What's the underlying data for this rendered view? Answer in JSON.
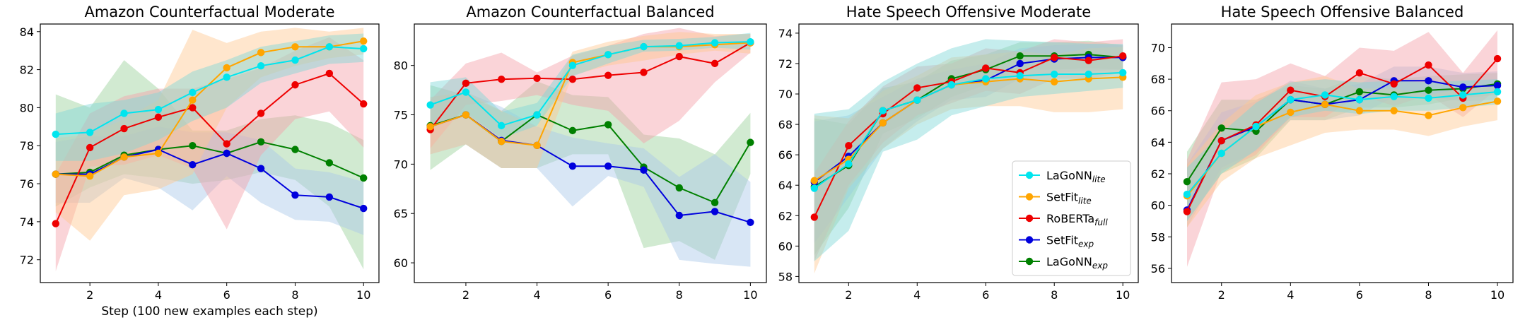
{
  "colors": {
    "LaGoNN_lite": "#00e5ee",
    "SetFit_lite": "#ffa500",
    "RoBERTa_full": "#ee0000",
    "SetFit_exp": "#0000dd",
    "LaGoNN_exp": "#008000",
    "band_LaGoNN_lite": "#7fd8d8",
    "band_SetFit_lite": "#ffc890",
    "band_RoBERTa_full": "#f4a0a8",
    "band_SetFit_exp": "#a8c8e8",
    "band_LaGoNN_exp": "#2ca02c"
  },
  "legend": {
    "entries": [
      {
        "key": "LaGoNN_lite",
        "base": "LaGoNN",
        "sub": "lite"
      },
      {
        "key": "SetFit_lite",
        "base": "SetFit",
        "sub": "lite"
      },
      {
        "key": "RoBERTa_full",
        "base": "RoBERTa",
        "sub": "full"
      },
      {
        "key": "SetFit_exp",
        "base": "SetFit",
        "sub": "exp"
      },
      {
        "key": "LaGoNN_exp",
        "base": "LaGoNN",
        "sub": "exp"
      }
    ]
  },
  "chart_data": [
    {
      "type": "line",
      "title": "Amazon Counterfactual      Moderate",
      "xlabel": "Step (100 new examples each step)",
      "ylabel": "",
      "x": [
        1,
        2,
        3,
        4,
        5,
        6,
        7,
        8,
        9,
        10
      ],
      "xlim": [
        0.55,
        10.45
      ],
      "ylim": [
        70.8,
        84.4
      ],
      "xticks": [
        2,
        4,
        6,
        8,
        10
      ],
      "yticks": [
        72,
        74,
        76,
        78,
        80,
        82,
        84
      ],
      "series": [
        {
          "key": "LaGoNN_exp",
          "name": "LaGoNN_exp",
          "values": [
            76.5,
            76.6,
            77.5,
            77.8,
            78.0,
            77.6,
            78.2,
            77.8,
            77.1,
            76.3
          ],
          "lower": [
            74.8,
            75.8,
            76.5,
            76.3,
            76.0,
            76.2,
            76.6,
            76.2,
            74.8,
            71.5
          ],
          "upper": [
            80.7,
            80.0,
            82.5,
            81.0,
            78.8,
            78.8,
            79.4,
            79.6,
            79.2,
            78.3
          ]
        },
        {
          "key": "SetFit_exp",
          "name": "SetFit_exp",
          "values": [
            76.5,
            76.5,
            77.4,
            77.8,
            77.0,
            77.6,
            76.8,
            75.4,
            75.3,
            74.7
          ],
          "lower": [
            75.0,
            75.0,
            76.3,
            75.8,
            74.6,
            76.4,
            75.0,
            74.1,
            74.0,
            73.3
          ],
          "upper": [
            78.2,
            78.5,
            78.5,
            79.0,
            78.7,
            78.7,
            78.3,
            76.8,
            76.6,
            76.1
          ]
        },
        {
          "key": "RoBERTa_full",
          "name": "RoBERTa_full",
          "values": [
            73.9,
            77.9,
            78.9,
            79.5,
            80.0,
            78.1,
            79.7,
            81.2,
            81.8,
            80.2
          ],
          "lower": [
            71.4,
            76.9,
            77.0,
            77.5,
            76.8,
            73.6,
            77.5,
            79.4,
            79.8,
            77.9
          ],
          "upper": [
            76.5,
            79.7,
            80.6,
            81.0,
            81.0,
            81.5,
            82.1,
            83.0,
            83.7,
            82.5
          ]
        },
        {
          "key": "SetFit_lite",
          "name": "SetFit_lite",
          "values": [
            76.5,
            76.4,
            77.4,
            77.6,
            80.4,
            82.1,
            82.9,
            83.2,
            83.2,
            83.5
          ],
          "lower": [
            74.5,
            73.0,
            75.4,
            75.7,
            76.5,
            80.0,
            81.6,
            82.2,
            82.6,
            82.8
          ],
          "upper": [
            78.4,
            78.6,
            79.4,
            80.4,
            84.1,
            83.4,
            84.0,
            84.2,
            84.0,
            84.2
          ]
        },
        {
          "key": "LaGoNN_lite",
          "name": "LaGoNN_lite",
          "values": [
            78.6,
            78.7,
            79.7,
            79.9,
            80.8,
            81.6,
            82.2,
            82.5,
            83.2,
            83.1
          ],
          "lower": [
            77.2,
            77.2,
            77.6,
            78.3,
            79.3,
            80.0,
            81.3,
            81.8,
            82.3,
            82.4
          ],
          "upper": [
            79.7,
            80.2,
            80.4,
            80.8,
            81.9,
            82.5,
            83.2,
            83.5,
            83.8,
            83.9
          ]
        }
      ]
    },
    {
      "type": "line",
      "title": "Amazon Counterfactual      Balanced",
      "xlabel": "",
      "ylabel": "",
      "x": [
        1,
        2,
        3,
        4,
        5,
        6,
        7,
        8,
        9,
        10
      ],
      "xlim": [
        0.55,
        10.45
      ],
      "ylim": [
        58.0,
        84.2
      ],
      "xticks": [
        2,
        4,
        6,
        8,
        10
      ],
      "yticks": [
        60,
        65,
        70,
        75,
        80
      ],
      "series": [
        {
          "key": "LaGoNN_exp",
          "name": "LaGoNN_exp",
          "values": [
            73.9,
            75.0,
            72.3,
            75.0,
            73.4,
            74.0,
            69.7,
            67.6,
            66.1,
            72.2
          ],
          "lower": [
            69.4,
            72.0,
            69.6,
            69.6,
            71.0,
            71.0,
            61.5,
            62.2,
            60.3,
            69.0
          ],
          "upper": [
            78.0,
            77.0,
            75.4,
            78.4,
            77.0,
            76.8,
            73.0,
            72.6,
            71.0,
            75.2
          ]
        },
        {
          "key": "SetFit_exp",
          "name": "SetFit_exp",
          "values": [
            73.8,
            75.0,
            72.4,
            71.9,
            69.8,
            69.8,
            69.4,
            64.8,
            65.2,
            64.1
          ],
          "lower": [
            71.0,
            72.0,
            69.6,
            69.6,
            65.7,
            68.8,
            67.7,
            60.3,
            59.9,
            59.6
          ],
          "upper": [
            76.8,
            77.3,
            75.8,
            73.8,
            72.7,
            72.1,
            71.6,
            68.7,
            71.0,
            68.2
          ]
        },
        {
          "key": "RoBERTa_full",
          "name": "RoBERTa_full",
          "values": [
            73.5,
            78.2,
            78.6,
            78.7,
            78.6,
            79.0,
            79.3,
            80.9,
            80.2,
            82.3
          ],
          "lower": [
            71.6,
            76.0,
            76.4,
            77.0,
            76.0,
            75.4,
            72.1,
            74.4,
            78.3,
            81.3
          ],
          "upper": [
            76.5,
            80.2,
            81.3,
            79.3,
            81.0,
            82.0,
            83.2,
            83.8,
            83.0,
            83.2
          ]
        },
        {
          "key": "SetFit_lite",
          "name": "SetFit_lite",
          "values": [
            73.8,
            75.0,
            72.3,
            71.9,
            80.3,
            81.1,
            81.9,
            81.9,
            82.1,
            82.3
          ],
          "lower": [
            71.0,
            72.0,
            69.6,
            69.6,
            79.0,
            80.0,
            80.5,
            81.1,
            81.5,
            81.2
          ],
          "upper": [
            76.8,
            77.3,
            75.4,
            73.8,
            81.4,
            82.4,
            83.0,
            83.4,
            83.2,
            83.2
          ]
        },
        {
          "key": "LaGoNN_lite",
          "name": "LaGoNN_lite",
          "values": [
            76.0,
            77.3,
            73.9,
            75.0,
            80.0,
            81.1,
            81.9,
            82.0,
            82.3,
            82.4
          ],
          "lower": [
            73.7,
            75.2,
            72.6,
            73.9,
            78.9,
            80.2,
            81.4,
            81.5,
            81.8,
            81.6
          ],
          "upper": [
            78.3,
            78.8,
            75.3,
            76.2,
            81.1,
            82.0,
            82.6,
            82.7,
            82.9,
            83.3
          ]
        }
      ]
    },
    {
      "type": "line",
      "title": "Hate Speech Offensive Moderate",
      "xlabel": "",
      "ylabel": "",
      "x": [
        1,
        2,
        3,
        4,
        5,
        6,
        7,
        8,
        9,
        10
      ],
      "xlim": [
        0.55,
        10.45
      ],
      "ylim": [
        57.6,
        74.6
      ],
      "xticks": [
        2,
        4,
        6,
        8,
        10
      ],
      "yticks": [
        58,
        60,
        62,
        64,
        66,
        68,
        70,
        72,
        74
      ],
      "series": [
        {
          "key": "LaGoNN_exp",
          "name": "LaGoNN_exp",
          "values": [
            63.9,
            65.3,
            68.9,
            69.6,
            71.0,
            71.6,
            72.5,
            72.5,
            72.6,
            72.4
          ],
          "lower": [
            59.4,
            62.5,
            67.4,
            68.4,
            69.8,
            70.6,
            71.6,
            71.6,
            71.7,
            71.6
          ],
          "upper": [
            68.4,
            68.0,
            70.4,
            70.8,
            72.2,
            72.6,
            73.4,
            73.4,
            73.5,
            73.2
          ]
        },
        {
          "key": "SetFit_exp",
          "name": "SetFit_exp",
          "values": [
            64.2,
            65.9,
            68.1,
            69.6,
            70.6,
            70.9,
            72.0,
            72.3,
            72.4,
            72.4
          ],
          "lower": [
            60.2,
            63.2,
            66.4,
            68.2,
            69.6,
            69.8,
            71.0,
            71.4,
            71.5,
            71.6
          ],
          "upper": [
            68.2,
            68.6,
            69.8,
            71.0,
            71.6,
            72.0,
            73.0,
            73.2,
            73.3,
            73.2
          ]
        },
        {
          "key": "RoBERTa_full",
          "name": "RoBERTa_full",
          "values": [
            61.9,
            66.6,
            68.7,
            70.4,
            70.8,
            71.7,
            71.4,
            72.4,
            72.2,
            72.5
          ],
          "lower": [
            59.0,
            64.0,
            66.8,
            68.6,
            69.4,
            70.2,
            70.0,
            71.0,
            71.0,
            71.4
          ],
          "upper": [
            64.8,
            68.2,
            70.5,
            71.8,
            72.0,
            73.0,
            72.8,
            73.6,
            73.4,
            73.6
          ]
        },
        {
          "key": "SetFit_lite",
          "name": "SetFit_lite",
          "values": [
            64.3,
            65.7,
            68.1,
            69.6,
            70.6,
            70.8,
            71.0,
            70.8,
            71.0,
            71.1
          ],
          "lower": [
            58.2,
            63.8,
            66.4,
            68.0,
            69.0,
            69.2,
            69.2,
            68.8,
            68.8,
            69.0
          ],
          "upper": [
            68.6,
            68.4,
            70.2,
            71.2,
            72.4,
            72.6,
            72.8,
            72.6,
            73.0,
            73.1
          ]
        },
        {
          "key": "LaGoNN_lite",
          "name": "LaGoNN_lite",
          "values": [
            63.8,
            65.4,
            68.9,
            69.6,
            70.6,
            71.0,
            71.2,
            71.3,
            71.3,
            71.4
          ],
          "lower": [
            59.0,
            61.0,
            66.2,
            67.0,
            68.6,
            69.2,
            69.8,
            70.0,
            70.2,
            70.4
          ],
          "upper": [
            68.7,
            69.0,
            70.8,
            72.0,
            73.0,
            73.6,
            73.5,
            73.4,
            73.3,
            73.3
          ]
        }
      ]
    },
    {
      "type": "line",
      "title": "Hate Speech Offensive Balanced",
      "xlabel": "",
      "ylabel": "",
      "x": [
        1,
        2,
        3,
        4,
        5,
        6,
        7,
        8,
        9,
        10
      ],
      "xlim": [
        0.55,
        10.45
      ],
      "ylim": [
        55.1,
        71.5
      ],
      "xticks": [
        2,
        4,
        6,
        8,
        10
      ],
      "yticks": [
        56,
        58,
        60,
        62,
        64,
        66,
        68,
        70
      ],
      "series": [
        {
          "key": "LaGoNN_exp",
          "name": "LaGoNN_exp",
          "values": [
            61.5,
            64.9,
            64.7,
            66.7,
            66.4,
            67.2,
            67.0,
            67.3,
            67.4,
            67.7
          ],
          "lower": [
            59.0,
            62.0,
            63.0,
            65.4,
            65.4,
            66.2,
            66.2,
            66.4,
            66.8,
            67.0
          ],
          "upper": [
            63.4,
            66.7,
            66.7,
            67.6,
            67.4,
            68.2,
            68.0,
            68.2,
            68.3,
            68.4
          ]
        },
        {
          "key": "SetFit_exp",
          "name": "SetFit_exp",
          "values": [
            59.7,
            64.1,
            65.0,
            66.7,
            66.4,
            66.7,
            67.9,
            67.9,
            67.5,
            67.6
          ],
          "lower": [
            58.6,
            62.4,
            63.4,
            65.4,
            65.4,
            65.7,
            66.9,
            66.9,
            66.6,
            66.7
          ],
          "upper": [
            62.6,
            65.9,
            66.6,
            67.9,
            67.4,
            67.7,
            68.8,
            68.8,
            68.4,
            68.5
          ]
        },
        {
          "key": "RoBERTa_full",
          "name": "RoBERTa_full",
          "values": [
            59.6,
            64.1,
            65.1,
            67.3,
            66.9,
            68.4,
            67.7,
            68.9,
            66.8,
            69.3
          ],
          "lower": [
            56.1,
            62.2,
            63.2,
            65.6,
            65.6,
            67.0,
            66.3,
            67.0,
            65.6,
            67.4
          ],
          "upper": [
            62.9,
            67.8,
            68.0,
            69.0,
            68.2,
            70.0,
            69.8,
            71.0,
            68.4,
            71.1
          ]
        },
        {
          "key": "SetFit_lite",
          "name": "SetFit_lite",
          "values": [
            60.6,
            63.3,
            65.0,
            65.9,
            66.4,
            66.0,
            66.0,
            65.7,
            66.2,
            66.6
          ],
          "lower": [
            58.6,
            61.5,
            63.0,
            63.8,
            64.6,
            64.8,
            64.8,
            64.4,
            65.0,
            65.4
          ],
          "upper": [
            62.6,
            65.2,
            67.0,
            67.8,
            68.2,
            67.4,
            67.4,
            67.0,
            67.4,
            67.7
          ]
        },
        {
          "key": "LaGoNN_lite",
          "name": "LaGoNN_lite",
          "values": [
            60.7,
            63.3,
            65.0,
            66.7,
            67.0,
            66.7,
            66.9,
            66.8,
            67.0,
            67.2
          ],
          "lower": [
            59.0,
            62.0,
            63.5,
            65.6,
            66.0,
            65.8,
            66.0,
            66.0,
            66.2,
            66.4
          ],
          "upper": [
            62.4,
            64.6,
            66.5,
            67.8,
            68.0,
            67.8,
            67.9,
            67.8,
            67.9,
            68.0
          ]
        }
      ]
    }
  ]
}
